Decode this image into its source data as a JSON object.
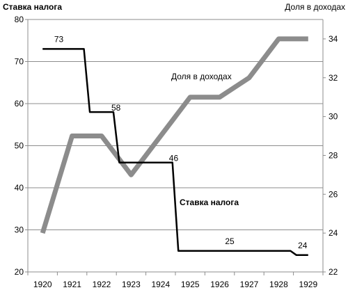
{
  "chart_data": {
    "type": "line",
    "categories": [
      "1920",
      "1921",
      "1922",
      "1923",
      "1924",
      "1925",
      "1926",
      "1927",
      "1928",
      "1929"
    ],
    "left_axis": {
      "title": "Ставка налога",
      "ylim": [
        20,
        80
      ],
      "ticks": [
        "20",
        "30",
        "40",
        "50",
        "60",
        "70",
        "80"
      ]
    },
    "right_axis": {
      "title": "Доля  в доходах",
      "ylim": [
        22,
        35
      ],
      "ticks": [
        "22",
        "24",
        "26",
        "28",
        "30",
        "32",
        "34"
      ]
    },
    "series": [
      {
        "name": "Ставка налога",
        "axis": "left",
        "color": "#000000",
        "style": "step",
        "values": [
          73,
          73,
          58,
          46,
          46,
          25,
          25,
          25,
          25,
          24
        ],
        "data_labels": [
          {
            "index": 0,
            "text": "73"
          },
          {
            "index": 2,
            "text": "58"
          },
          {
            "index": 4,
            "text": "46"
          },
          {
            "index": 7,
            "text": "25"
          },
          {
            "index": 9,
            "text": "24"
          }
        ]
      },
      {
        "name": "Доля в доходах",
        "axis": "right",
        "color": "#8c8c8c",
        "style": "line",
        "values": [
          24,
          29,
          29,
          27,
          29,
          31,
          31,
          32,
          34,
          34
        ]
      }
    ],
    "grid": true
  }
}
